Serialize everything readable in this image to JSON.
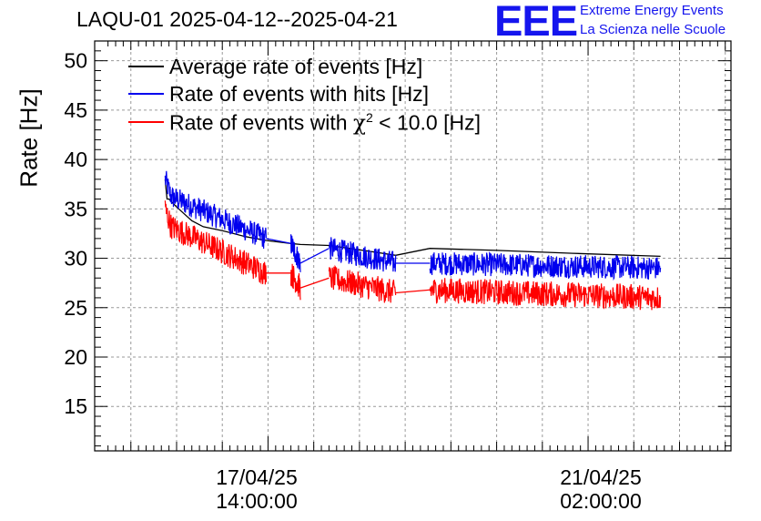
{
  "header": {
    "title": "LAQU-01 2025-04-12--2025-04-21",
    "logo_text": "EEE",
    "logo_line1": "Extreme Energy Events",
    "logo_line2": "La Scienza nelle Scuole"
  },
  "colors": {
    "average": "#000000",
    "hits": "#0000ee",
    "chi2": "#ff0000",
    "grid": "#9a9a9a",
    "logo": "#1515ee"
  },
  "chart_data": {
    "type": "line",
    "title": "LAQU-01 2025-04-12--2025-04-21",
    "xlabel": "",
    "ylabel": "Rate [Hz]",
    "ylim": [
      10.5,
      52
    ],
    "yticks": [
      15,
      20,
      25,
      30,
      35,
      40,
      45,
      50
    ],
    "xlim_hours": [
      -45.5,
      121.5
    ],
    "x_major_ticks": [
      {
        "hour": 0,
        "label_date": "17/04/25",
        "label_time": "14:00:00"
      },
      {
        "hour": 84,
        "label_date": "21/04/25",
        "label_time": "02:00:00"
      }
    ],
    "grid": true,
    "legend_position": "top-left",
    "legend": [
      {
        "name": "Average rate of events [Hz]",
        "color": "#000000"
      },
      {
        "name": "Rate of events with hits [Hz]",
        "color": "#0000ee"
      },
      {
        "name_main": "Rate of events with ",
        "name_chi": "χ",
        "name_sup": "2",
        "name_tail": " < 10.0 [Hz]",
        "color": "#ff0000"
      }
    ],
    "segments": [
      {
        "start": -27.0,
        "end": -0.5,
        "hits_start": 36.5,
        "hits_end": 32.0,
        "chi_start": 33.5,
        "chi_end": 28.5
      },
      {
        "start": 6.0,
        "end": 8.5,
        "hits_start": 31.5,
        "hits_end": 29.5,
        "chi_start": 28.5,
        "chi_end": 27.0
      },
      {
        "start": 16.0,
        "end": 33.5,
        "hits_start": 31.0,
        "hits_end": 29.5,
        "chi_start": 28.0,
        "chi_end": 26.5
      },
      {
        "start": 42.5,
        "end": 103.0,
        "hits_start": 29.5,
        "hits_end": 29.0,
        "chi_start": 26.8,
        "chi_end": 26.0
      }
    ],
    "series": [
      {
        "name": "Average rate of events [Hz]",
        "color": "#000000",
        "x_hours": [
          -27,
          -26.5,
          -26,
          -24,
          -22,
          -20,
          -17,
          -12,
          -6,
          -0.5,
          6,
          8.5,
          16,
          25,
          33.5,
          42.5,
          60,
          80,
          103
        ],
        "values": [
          38.0,
          36.0,
          36.0,
          35.2,
          34.5,
          33.8,
          33.2,
          32.8,
          32.2,
          31.8,
          31.5,
          31.4,
          31.3,
          30.8,
          30.3,
          31.0,
          30.8,
          30.5,
          30.2
        ]
      },
      {
        "name": "Rate of events with hits [Hz]",
        "color": "#0000ee",
        "note_style": "dense noisy band",
        "band_half_width": 1.2
      },
      {
        "name": "Rate of events with χ2 < 10.0 [Hz]",
        "color": "#ff0000",
        "note_style": "dense noisy band",
        "band_half_width": 1.3
      }
    ]
  }
}
